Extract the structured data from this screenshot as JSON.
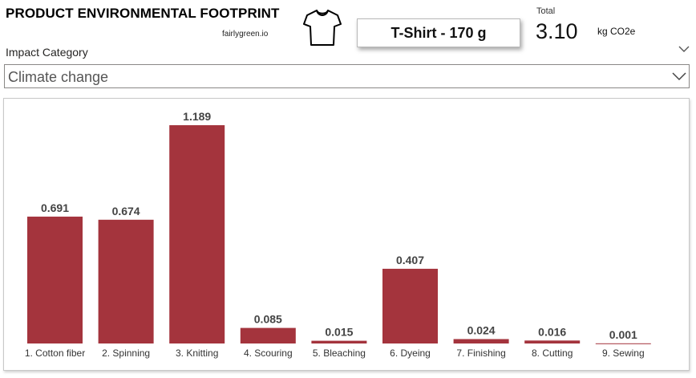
{
  "header": {
    "title": "PRODUCT ENVIRONMENTAL FOOTPRINT",
    "subtitle": "fairlygreen.io",
    "product_icon": "tshirt-icon",
    "product_label": "T-Shirt - 170 g"
  },
  "total": {
    "label": "Total",
    "value": "3.10",
    "unit": "kg CO2e"
  },
  "slicer": {
    "label": "Impact Category",
    "selected": "Climate change"
  },
  "colors": {
    "bar": "#A4343D"
  },
  "chart_data": {
    "type": "bar",
    "title": "",
    "xlabel": "",
    "ylabel": "",
    "categories": [
      "1. Cotton fiber",
      "2. Spinning",
      "3. Knitting",
      "4. Scouring",
      "5. Bleaching",
      "6. Dyeing",
      "7. Finishing",
      "8. Cutting",
      "9. Sewing"
    ],
    "values": [
      0.691,
      0.674,
      1.189,
      0.085,
      0.015,
      0.407,
      0.024,
      0.016,
      0.001
    ],
    "data_labels": [
      "0.691",
      "0.674",
      "1.189",
      "0.085",
      "0.015",
      "0.407",
      "0.024",
      "0.016",
      "0.001"
    ],
    "ylim": [
      0,
      1.189
    ],
    "grid": false
  }
}
